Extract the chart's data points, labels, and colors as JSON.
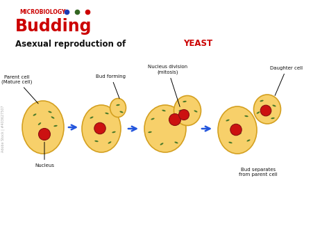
{
  "bg_color": "#ffffff",
  "cell_fill": "#F7D06A",
  "cell_fill_light": "#FAE09A",
  "cell_edge": "#D4A020",
  "nucleus_fill": "#CC1111",
  "nucleus_edge": "#881111",
  "dot_blue": "#1a3ab5",
  "dot_green": "#336622",
  "dot_red": "#cc0000",
  "arrow_color": "#2255dd",
  "label_color": "#111111",
  "green_mark_color": "#4a7a2a",
  "title_micro": "MICROBIOLOGY",
  "title_budding": "Budding",
  "subtitle_black": "Asexual reproduction of ",
  "subtitle_red": "YEAST",
  "label1_top": "Parent cell\n(Mature cell)",
  "label1_bot": "Nucleus",
  "label2_top": "Bud forming",
  "label3_top": "Nucleus division\n(mitosis)",
  "label4_top": "Daughter cell",
  "label4_bot": "Bud separates\nfrom parent cell"
}
